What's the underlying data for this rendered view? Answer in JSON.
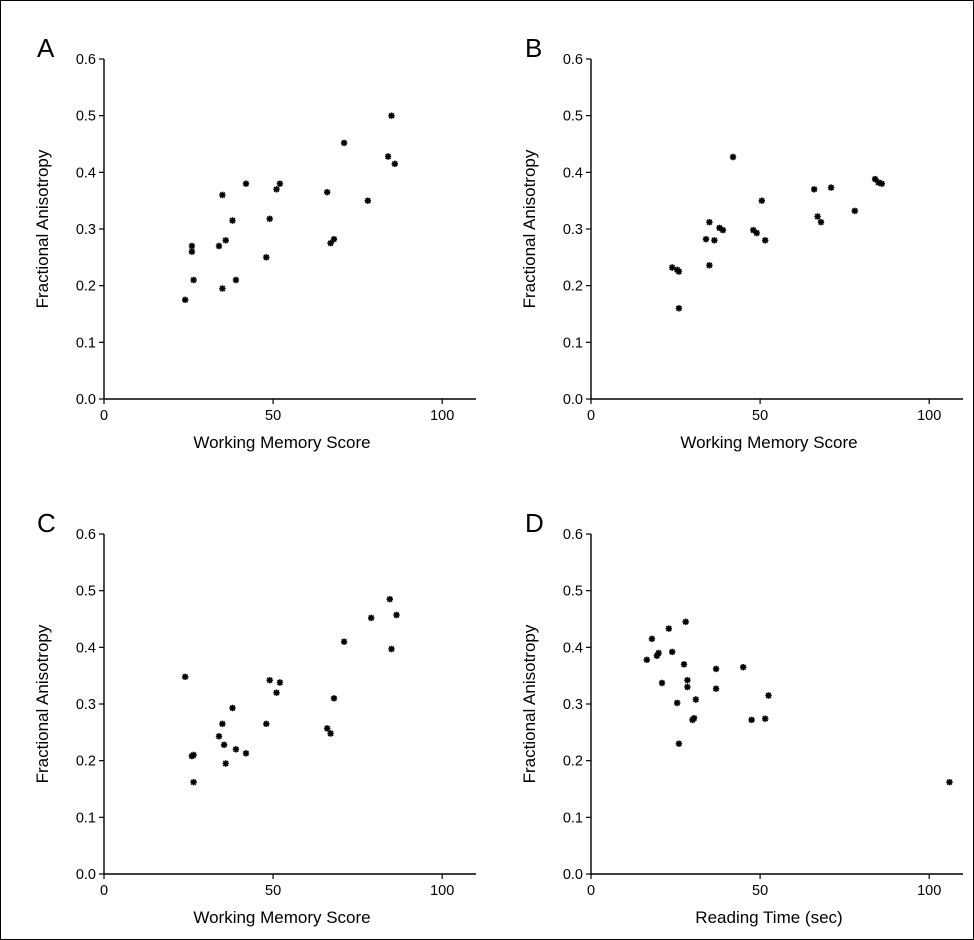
{
  "chart_data": [
    {
      "type": "scatter",
      "panel_label": "A",
      "xlabel": "Working Memory Score",
      "ylabel": "Fractional Anisotropy",
      "xlim": [
        0,
        110
      ],
      "ylim": [
        0,
        0.6
      ],
      "xticks": [
        "0",
        "50",
        "100"
      ],
      "yticks": [
        "0.0",
        "0.1",
        "0.2",
        "0.3",
        "0.4",
        "0.5",
        "0.6"
      ],
      "grid": false,
      "points": [
        {
          "x": 24,
          "y": 0.175
        },
        {
          "x": 26,
          "y": 0.27
        },
        {
          "x": 26,
          "y": 0.26
        },
        {
          "x": 26.5,
          "y": 0.21
        },
        {
          "x": 34,
          "y": 0.27
        },
        {
          "x": 35,
          "y": 0.36
        },
        {
          "x": 35,
          "y": 0.195
        },
        {
          "x": 36,
          "y": 0.28
        },
        {
          "x": 38,
          "y": 0.315
        },
        {
          "x": 39,
          "y": 0.21
        },
        {
          "x": 42,
          "y": 0.38
        },
        {
          "x": 48,
          "y": 0.25
        },
        {
          "x": 49,
          "y": 0.318
        },
        {
          "x": 51,
          "y": 0.37
        },
        {
          "x": 52,
          "y": 0.38
        },
        {
          "x": 66,
          "y": 0.365
        },
        {
          "x": 67,
          "y": 0.275
        },
        {
          "x": 68,
          "y": 0.282
        },
        {
          "x": 71,
          "y": 0.452
        },
        {
          "x": 78,
          "y": 0.35
        },
        {
          "x": 84,
          "y": 0.428
        },
        {
          "x": 85,
          "y": 0.5
        },
        {
          "x": 86,
          "y": 0.415
        }
      ]
    },
    {
      "type": "scatter",
      "panel_label": "B",
      "xlabel": "Working Memory Score",
      "ylabel": "Fractional Anisotropy",
      "xlim": [
        0,
        110
      ],
      "ylim": [
        0,
        0.6
      ],
      "xticks": [
        "0",
        "50",
        "100"
      ],
      "yticks": [
        "0.0",
        "0.1",
        "0.2",
        "0.3",
        "0.4",
        "0.5",
        "0.6"
      ],
      "grid": false,
      "points": [
        {
          "x": 24,
          "y": 0.232
        },
        {
          "x": 25.5,
          "y": 0.228
        },
        {
          "x": 26,
          "y": 0.225
        },
        {
          "x": 26,
          "y": 0.16
        },
        {
          "x": 34,
          "y": 0.282
        },
        {
          "x": 35,
          "y": 0.312
        },
        {
          "x": 35,
          "y": 0.236
        },
        {
          "x": 36.5,
          "y": 0.28
        },
        {
          "x": 38,
          "y": 0.302
        },
        {
          "x": 39,
          "y": 0.298
        },
        {
          "x": 42,
          "y": 0.427
        },
        {
          "x": 48,
          "y": 0.298
        },
        {
          "x": 49,
          "y": 0.293
        },
        {
          "x": 50.5,
          "y": 0.35
        },
        {
          "x": 51.5,
          "y": 0.28
        },
        {
          "x": 66,
          "y": 0.37
        },
        {
          "x": 67,
          "y": 0.322
        },
        {
          "x": 68,
          "y": 0.312
        },
        {
          "x": 71,
          "y": 0.373
        },
        {
          "x": 78,
          "y": 0.332
        },
        {
          "x": 84,
          "y": 0.388
        },
        {
          "x": 85,
          "y": 0.382
        },
        {
          "x": 86,
          "y": 0.38
        }
      ]
    },
    {
      "type": "scatter",
      "panel_label": "C",
      "xlabel": "Working Memory Score",
      "ylabel": "Fractional Anisotropy",
      "xlim": [
        0,
        110
      ],
      "ylim": [
        0,
        0.6
      ],
      "xticks": [
        "0",
        "50",
        "100"
      ],
      "yticks": [
        "0.0",
        "0.1",
        "0.2",
        "0.3",
        "0.4",
        "0.5",
        "0.6"
      ],
      "grid": false,
      "points": [
        {
          "x": 24,
          "y": 0.348
        },
        {
          "x": 26,
          "y": 0.208
        },
        {
          "x": 26.5,
          "y": 0.21
        },
        {
          "x": 26.5,
          "y": 0.162
        },
        {
          "x": 34,
          "y": 0.243
        },
        {
          "x": 35,
          "y": 0.265
        },
        {
          "x": 35.5,
          "y": 0.228
        },
        {
          "x": 36,
          "y": 0.195
        },
        {
          "x": 38,
          "y": 0.293
        },
        {
          "x": 39,
          "y": 0.22
        },
        {
          "x": 42,
          "y": 0.213
        },
        {
          "x": 48,
          "y": 0.265
        },
        {
          "x": 49,
          "y": 0.342
        },
        {
          "x": 51,
          "y": 0.32
        },
        {
          "x": 52,
          "y": 0.338
        },
        {
          "x": 66,
          "y": 0.257
        },
        {
          "x": 67,
          "y": 0.248
        },
        {
          "x": 68,
          "y": 0.31
        },
        {
          "x": 71,
          "y": 0.41
        },
        {
          "x": 79,
          "y": 0.452
        },
        {
          "x": 84.5,
          "y": 0.485
        },
        {
          "x": 85,
          "y": 0.397
        },
        {
          "x": 86.5,
          "y": 0.457
        }
      ]
    },
    {
      "type": "scatter",
      "panel_label": "D",
      "xlabel": "Reading Time (sec)",
      "ylabel": "Fractional Anisotropy",
      "xlim": [
        0,
        110
      ],
      "ylim": [
        0,
        0.6
      ],
      "xticks": [
        "0",
        "50",
        "100"
      ],
      "yticks": [
        "0.0",
        "0.1",
        "0.2",
        "0.3",
        "0.4",
        "0.5",
        "0.6"
      ],
      "grid": false,
      "points": [
        {
          "x": 16.5,
          "y": 0.378
        },
        {
          "x": 18,
          "y": 0.415
        },
        {
          "x": 19.5,
          "y": 0.385
        },
        {
          "x": 20,
          "y": 0.39
        },
        {
          "x": 21,
          "y": 0.337
        },
        {
          "x": 23,
          "y": 0.433
        },
        {
          "x": 24,
          "y": 0.392
        },
        {
          "x": 25.5,
          "y": 0.302
        },
        {
          "x": 26,
          "y": 0.23
        },
        {
          "x": 27.5,
          "y": 0.37
        },
        {
          "x": 28,
          "y": 0.445
        },
        {
          "x": 28.5,
          "y": 0.342
        },
        {
          "x": 28.5,
          "y": 0.33
        },
        {
          "x": 30,
          "y": 0.272
        },
        {
          "x": 30.5,
          "y": 0.275
        },
        {
          "x": 31,
          "y": 0.308
        },
        {
          "x": 37,
          "y": 0.362
        },
        {
          "x": 37,
          "y": 0.327
        },
        {
          "x": 45,
          "y": 0.365
        },
        {
          "x": 47.5,
          "y": 0.272
        },
        {
          "x": 51.5,
          "y": 0.274
        },
        {
          "x": 52.5,
          "y": 0.315
        },
        {
          "x": 106,
          "y": 0.162
        }
      ]
    }
  ]
}
